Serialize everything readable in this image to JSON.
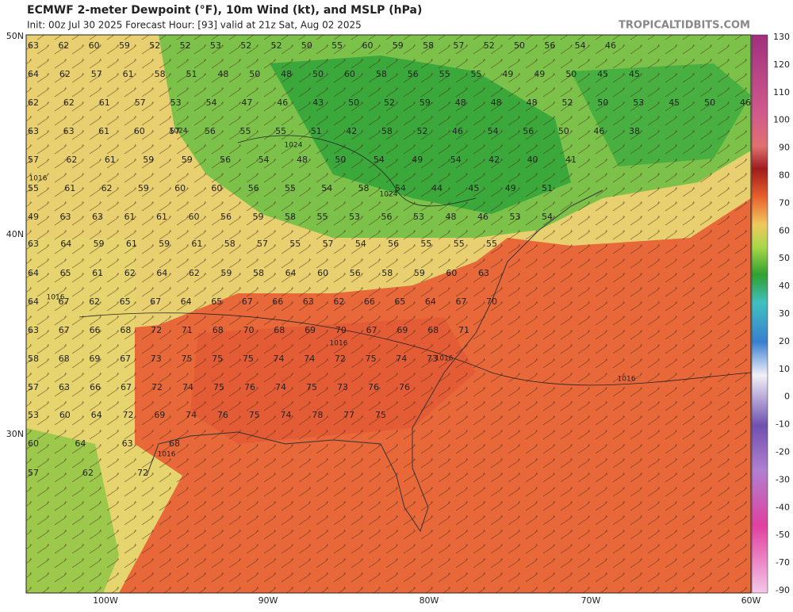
{
  "header": {
    "title": "ECMWF 2-meter Dewpoint (°F), 10m Wind (kt), and MSLP (hPa)",
    "subtitle": "Init: 00z Jul 30 2025   Forecast Hour: [93]   valid at 21z Sat, Aug 02 2025",
    "watermark": "TROPICALTIDBITS.COM"
  },
  "latitude_labels": [
    "50N",
    "40N",
    "30N"
  ],
  "longitude_labels": [
    "100W",
    "90W",
    "80W",
    "70W",
    "60W"
  ],
  "colorbar": {
    "ticks": [
      "130",
      "120",
      "110",
      "100",
      "90",
      "80",
      "70",
      "60",
      "50",
      "40",
      "30",
      "20",
      "10",
      "0",
      "-10",
      "-20",
      "-30",
      "-40",
      "-50",
      "-70",
      "-90"
    ]
  },
  "station_values": [
    [
      "63",
      "62",
      "60",
      "59",
      "52",
      "52",
      "53",
      "52",
      "52",
      "50",
      "55",
      "60",
      "59",
      "58",
      "57",
      "52",
      "50",
      "56",
      "54",
      "46"
    ],
    [
      "64",
      "62",
      "57",
      "61",
      "58",
      "51",
      "48",
      "50",
      "48",
      "50",
      "60",
      "58",
      "56",
      "55",
      "55",
      "49",
      "49",
      "50",
      "45",
      "45"
    ],
    [
      "62",
      "62",
      "61",
      "57",
      "53",
      "54",
      "47",
      "46",
      "43",
      "50",
      "52",
      "59",
      "48",
      "48",
      "48",
      "52",
      "50",
      "53",
      "45",
      "50",
      "46"
    ],
    [
      "63",
      "63",
      "61",
      "60",
      "57",
      "56",
      "55",
      "55",
      "51",
      "42",
      "58",
      "52",
      "46",
      "54",
      "56",
      "50",
      "46",
      "38"
    ],
    [
      "57",
      "62",
      "61",
      "59",
      "59",
      "56",
      "54",
      "48",
      "50",
      "54",
      "49",
      "54",
      "42",
      "40",
      "41"
    ],
    [
      "55",
      "61",
      "62",
      "59",
      "60",
      "60",
      "56",
      "55",
      "54",
      "58",
      "54",
      "44",
      "45",
      "49",
      "51"
    ],
    [
      "49",
      "63",
      "63",
      "61",
      "61",
      "60",
      "56",
      "59",
      "58",
      "55",
      "53",
      "56",
      "53",
      "48",
      "46",
      "53",
      "54"
    ],
    [
      "63",
      "64",
      "59",
      "61",
      "59",
      "61",
      "58",
      "57",
      "55",
      "57",
      "54",
      "56",
      "55",
      "55",
      "55"
    ],
    [
      "64",
      "65",
      "61",
      "62",
      "64",
      "62",
      "59",
      "58",
      "64",
      "60",
      "56",
      "58",
      "59",
      "60",
      "63"
    ],
    [
      "64",
      "67",
      "62",
      "65",
      "67",
      "64",
      "65",
      "67",
      "66",
      "63",
      "62",
      "66",
      "65",
      "64",
      "67",
      "70"
    ],
    [
      "63",
      "67",
      "66",
      "68",
      "72",
      "71",
      "68",
      "70",
      "68",
      "69",
      "70",
      "67",
      "69",
      "68",
      "71"
    ],
    [
      "58",
      "68",
      "69",
      "67",
      "73",
      "75",
      "75",
      "75",
      "74",
      "74",
      "72",
      "75",
      "74",
      "73"
    ],
    [
      "57",
      "63",
      "66",
      "67",
      "72",
      "74",
      "75",
      "76",
      "74",
      "75",
      "73",
      "76",
      "76"
    ],
    [
      "53",
      "60",
      "64",
      "72",
      "69",
      "74",
      "76",
      "75",
      "74",
      "78",
      "77",
      "75"
    ],
    [
      "60",
      "64",
      "63",
      "68"
    ],
    [
      "57",
      "62",
      "72"
    ]
  ],
  "isobar_labels": [
    "1024",
    "1024",
    "1024",
    "1016",
    "1016",
    "1016",
    "1016",
    "1016",
    "1016"
  ]
}
